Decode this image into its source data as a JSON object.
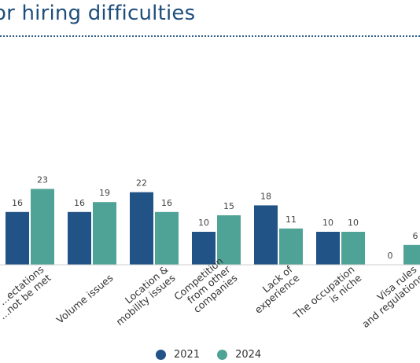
{
  "title": "or hiring difficulties",
  "chart_data": {
    "type": "bar",
    "categories": [
      [
        "...ectations",
        "...not be met"
      ],
      [
        "Volume issues"
      ],
      [
        "Location &",
        "mobility issues"
      ],
      [
        "Competition",
        "from other",
        "companies"
      ],
      [
        "Lack of",
        "experience"
      ],
      [
        "The occupation",
        "is niche"
      ],
      [
        "Visa rules",
        "and regulations"
      ]
    ],
    "series": [
      {
        "name": "2021",
        "color": "#215386",
        "values": [
          16,
          16,
          22,
          10,
          18,
          10,
          0
        ]
      },
      {
        "name": "2024",
        "color": "#4fa396",
        "values": [
          23,
          19,
          16,
          15,
          11,
          10,
          6
        ]
      }
    ],
    "ylim": [
      0,
      25
    ],
    "grid": false,
    "legend_position": "bottom"
  }
}
